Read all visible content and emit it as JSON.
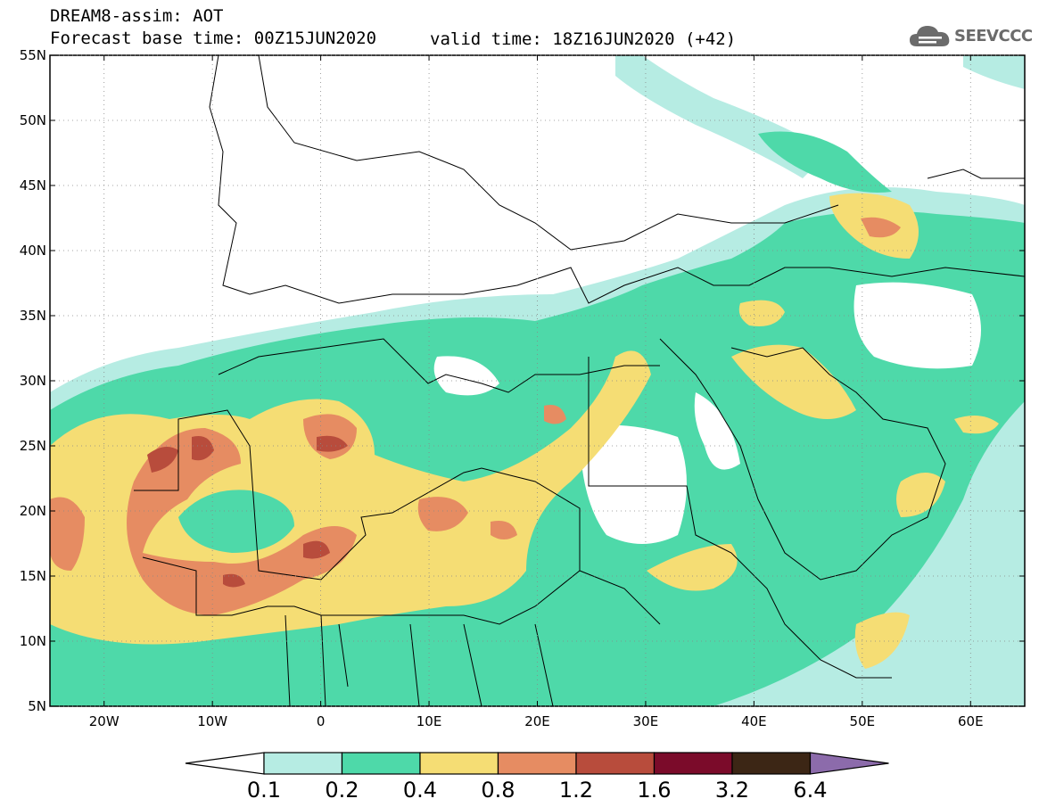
{
  "header": {
    "line1": "DREAM8-assim: AOT",
    "line2": "Forecast base time: 00Z15JUN2020",
    "valid": "valid time: 18Z16JUN2020 (+42)"
  },
  "logo": {
    "text": "SEEVCCC",
    "icon": "cloud-icon"
  },
  "axes": {
    "x_ticks": [
      "20W",
      "10W",
      "0",
      "10E",
      "20E",
      "30E",
      "40E",
      "50E",
      "60E"
    ],
    "y_ticks": [
      "55N",
      "50N",
      "45N",
      "40N",
      "35N",
      "30N",
      "25N",
      "20N",
      "15N",
      "10N",
      "5N"
    ]
  },
  "colorbar": {
    "labels": [
      "0.1",
      "0.2",
      "0.4",
      "0.8",
      "1.2",
      "1.6",
      "3.2",
      "6.4"
    ],
    "colors": [
      "#b6ece3",
      "#4ed9a9",
      "#f5dd74",
      "#e68c62",
      "#b84c3c",
      "#7b0b2a",
      "#3c2615",
      "#8c6bab"
    ]
  },
  "chart_data": {
    "type": "map",
    "variable": "AOT",
    "lon_range": [
      -25,
      65
    ],
    "lat_range": [
      5,
      55
    ],
    "levels": [
      0.1,
      0.2,
      0.4,
      0.8,
      1.2,
      1.6,
      3.2,
      6.4
    ]
  }
}
